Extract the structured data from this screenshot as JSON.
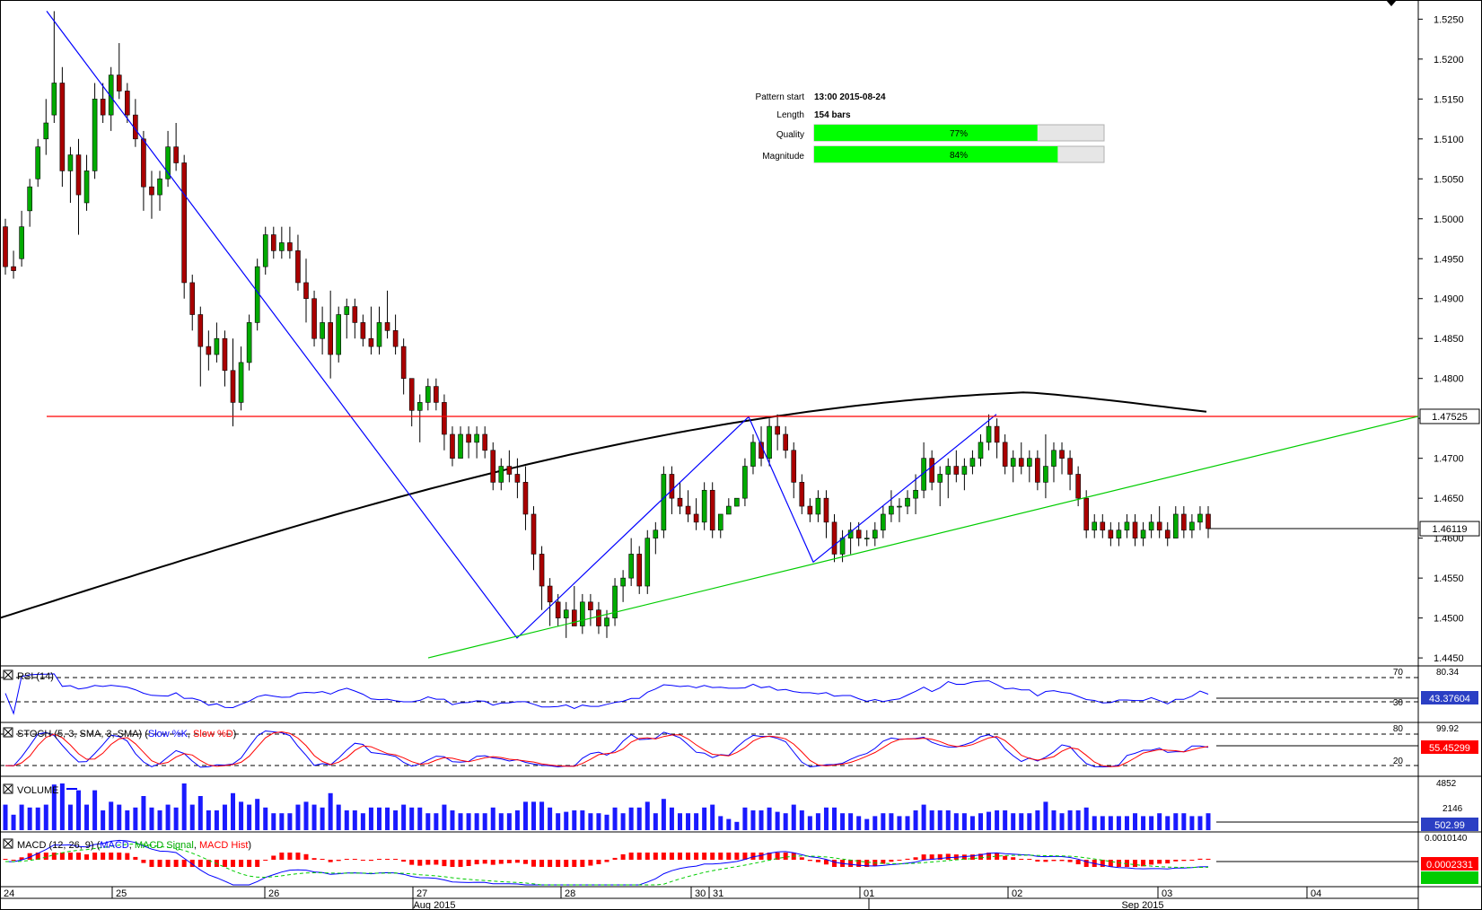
{
  "pattern_info": {
    "pattern_start_label": "Pattern start",
    "pattern_start_value": "13:00 2015-08-24",
    "length_label": "Length",
    "length_value": "154 bars",
    "quality_label": "Quality",
    "quality_value": 0.77,
    "quality_text": "77%",
    "magnitude_label": "Magnitude",
    "magnitude_value": 0.84,
    "magnitude_text": "84%"
  },
  "indicator_labels": {
    "rsi": "RSI (14)",
    "stoch_prefix": "STOCH (5, 3, SMA, 3, SMA) (",
    "stoch_k": "Slow %K",
    "stoch_sep": ", ",
    "stoch_d": "Slow %D",
    "stoch_suffix": ")",
    "volume": "VOLUME",
    "macd_prefix": "MACD (12, 26, 9) (",
    "macd_line": "MACD",
    "macd_sep1": ", ",
    "macd_signal": "MACD Signal",
    "macd_sep2": ", ",
    "macd_hist": "MACD Hist",
    "macd_suffix": ")"
  },
  "price_axis": {
    "ticks": [
      "1.5250",
      "1.5200",
      "1.5150",
      "1.5100",
      "1.5050",
      "1.5000",
      "1.4950",
      "1.4900",
      "1.4850",
      "1.4800",
      "1.4750",
      "1.4700",
      "1.4650",
      "1.4600",
      "1.4550",
      "1.4500",
      "1.4450"
    ],
    "tick_values": [
      1.525,
      1.52,
      1.515,
      1.51,
      1.505,
      1.5,
      1.495,
      1.49,
      1.485,
      1.48,
      1.475,
      1.47,
      1.465,
      1.46,
      1.455,
      1.45,
      1.445
    ],
    "resistance_label": "1.47525",
    "current_label": "1.46119"
  },
  "rsi_axis": {
    "levels": [
      "70",
      "30"
    ],
    "top_value": "80.34",
    "current": "43.37604"
  },
  "stoch_axis": {
    "levels": [
      "80",
      "20"
    ],
    "top_value": "99.92",
    "current": "55.45299"
  },
  "volume_axis": {
    "top_value": "4852",
    "mid_value": "2146",
    "current": "502.99"
  },
  "macd_axis": {
    "top_value": "0.0010140",
    "current": "0.0002331"
  },
  "time_axis": {
    "day_labels": [
      "24",
      "25",
      "26",
      "27",
      "28",
      "30",
      "31",
      "01",
      "02",
      "03",
      "04"
    ],
    "month_labels": [
      "Aug 2015",
      "Sep 2015"
    ]
  },
  "colors": {
    "bull": "#00aa00",
    "bear": "#aa0000",
    "pattern_line": "#0000ff",
    "support_line": "#00cc00",
    "resistance_line": "#ff0000",
    "ma_line": "#000000",
    "quality_bar": "#00ff00",
    "current_badge": "#2b3fc4",
    "macd_badge": "#ff0000"
  },
  "chart_data": {
    "type": "candlestick",
    "ylim": [
      1.444,
      1.5265
    ],
    "resistance_level": 1.47525,
    "current_price": 1.46119,
    "pattern_pivots": [
      {
        "x": "24",
        "y": 1.526
      },
      {
        "x": "27",
        "y": 1.4475
      },
      {
        "x": "31",
        "y": 1.4752
      },
      {
        "x": "31",
        "y": 1.457
      },
      {
        "x": "02",
        "y": 1.4755
      }
    ],
    "support_line": [
      {
        "x": "27",
        "y": 1.445
      },
      {
        "x": "04",
        "y": 1.47525
      }
    ],
    "ohlc": [
      [
        1.499,
        1.5,
        1.493,
        1.494
      ],
      [
        1.494,
        1.496,
        1.4925,
        1.4935
      ],
      [
        1.495,
        1.501,
        1.494,
        1.499
      ],
      [
        1.501,
        1.505,
        1.499,
        1.504
      ],
      [
        1.505,
        1.51,
        1.504,
        1.509
      ],
      [
        1.51,
        1.515,
        1.508,
        1.512
      ],
      [
        1.513,
        1.526,
        1.512,
        1.517
      ],
      [
        1.517,
        1.519,
        1.504,
        1.506
      ],
      [
        1.506,
        1.509,
        1.502,
        1.508
      ],
      [
        1.508,
        1.51,
        1.498,
        1.503
      ],
      [
        1.502,
        1.508,
        1.501,
        1.506
      ],
      [
        1.506,
        1.517,
        1.505,
        1.515
      ],
      [
        1.515,
        1.517,
        1.512,
        1.513
      ],
      [
        1.513,
        1.519,
        1.511,
        1.518
      ],
      [
        1.518,
        1.522,
        1.515,
        1.516
      ],
      [
        1.516,
        1.517,
        1.512,
        1.513
      ],
      [
        1.513,
        1.515,
        1.509,
        1.51
      ],
      [
        1.51,
        1.511,
        1.501,
        1.504
      ],
      [
        1.504,
        1.506,
        1.5,
        1.503
      ],
      [
        1.503,
        1.506,
        1.501,
        1.505
      ],
      [
        1.505,
        1.511,
        1.504,
        1.509
      ],
      [
        1.509,
        1.512,
        1.506,
        1.507
      ],
      [
        1.507,
        1.508,
        1.49,
        1.492
      ],
      [
        1.492,
        1.493,
        1.486,
        1.488
      ],
      [
        1.488,
        1.489,
        1.479,
        1.484
      ],
      [
        1.484,
        1.486,
        1.481,
        1.483
      ],
      [
        1.483,
        1.487,
        1.482,
        1.485
      ],
      [
        1.485,
        1.486,
        1.479,
        1.481
      ],
      [
        1.481,
        1.485,
        1.474,
        1.477
      ],
      [
        1.477,
        1.484,
        1.476,
        1.482
      ],
      [
        1.482,
        1.488,
        1.481,
        1.487
      ],
      [
        1.487,
        1.495,
        1.486,
        1.494
      ],
      [
        1.494,
        1.499,
        1.493,
        1.498
      ],
      [
        1.498,
        1.499,
        1.495,
        1.496
      ],
      [
        1.496,
        1.499,
        1.495,
        1.497
      ],
      [
        1.497,
        1.499,
        1.495,
        1.496
      ],
      [
        1.496,
        1.498,
        1.491,
        1.492
      ],
      [
        1.492,
        1.495,
        1.487,
        1.49
      ],
      [
        1.49,
        1.491,
        1.484,
        1.485
      ],
      [
        1.485,
        1.489,
        1.483,
        1.487
      ],
      [
        1.487,
        1.491,
        1.48,
        1.483
      ],
      [
        1.483,
        1.489,
        1.482,
        1.488
      ],
      [
        1.488,
        1.49,
        1.485,
        1.489
      ],
      [
        1.489,
        1.49,
        1.485,
        1.487
      ],
      [
        1.487,
        1.488,
        1.484,
        1.485
      ],
      [
        1.485,
        1.489,
        1.483,
        1.484
      ],
      [
        1.484,
        1.489,
        1.483,
        1.487
      ],
      [
        1.487,
        1.491,
        1.485,
        1.486
      ],
      [
        1.486,
        1.488,
        1.483,
        1.484
      ],
      [
        1.484,
        1.485,
        1.478,
        1.48
      ],
      [
        1.48,
        1.48,
        1.474,
        1.476
      ],
      [
        1.476,
        1.478,
        1.472,
        1.477
      ],
      [
        1.477,
        1.48,
        1.476,
        1.479
      ],
      [
        1.479,
        1.48,
        1.476,
        1.477
      ],
      [
        1.477,
        1.478,
        1.471,
        1.473
      ],
      [
        1.473,
        1.474,
        1.469,
        1.47
      ],
      [
        1.47,
        1.474,
        1.47,
        1.473
      ],
      [
        1.473,
        1.474,
        1.47,
        1.472
      ],
      [
        1.472,
        1.474,
        1.47,
        1.473
      ],
      [
        1.473,
        1.474,
        1.47,
        1.471
      ],
      [
        1.471,
        1.472,
        1.466,
        1.467
      ],
      [
        1.467,
        1.47,
        1.466,
        1.469
      ],
      [
        1.469,
        1.471,
        1.467,
        1.468
      ],
      [
        1.468,
        1.47,
        1.465,
        1.467
      ],
      [
        1.467,
        1.469,
        1.461,
        1.463
      ],
      [
        1.463,
        1.464,
        1.456,
        1.458
      ],
      [
        1.458,
        1.459,
        1.451,
        1.454
      ],
      [
        1.454,
        1.455,
        1.449,
        1.452
      ],
      [
        1.452,
        1.453,
        1.449,
        1.45
      ],
      [
        1.45,
        1.452,
        1.4475,
        1.451
      ],
      [
        1.451,
        1.454,
        1.449,
        1.449
      ],
      [
        1.449,
        1.453,
        1.448,
        1.452
      ],
      [
        1.452,
        1.453,
        1.449,
        1.451
      ],
      [
        1.451,
        1.452,
        1.448,
        1.449
      ],
      [
        1.449,
        1.451,
        1.4475,
        1.45
      ],
      [
        1.45,
        1.455,
        1.449,
        1.454
      ],
      [
        1.454,
        1.456,
        1.452,
        1.455
      ],
      [
        1.455,
        1.46,
        1.454,
        1.458
      ],
      [
        1.458,
        1.459,
        1.453,
        1.454
      ],
      [
        1.454,
        1.461,
        1.453,
        1.46
      ],
      [
        1.46,
        1.462,
        1.458,
        1.461
      ],
      [
        1.461,
        1.469,
        1.46,
        1.468
      ],
      [
        1.468,
        1.469,
        1.463,
        1.465
      ],
      [
        1.465,
        1.467,
        1.463,
        1.464
      ],
      [
        1.464,
        1.466,
        1.462,
        1.463
      ],
      [
        1.463,
        1.465,
        1.461,
        1.462
      ],
      [
        1.462,
        1.467,
        1.461,
        1.466
      ],
      [
        1.466,
        1.467,
        1.46,
        1.461
      ],
      [
        1.461,
        1.463,
        1.46,
        1.463
      ],
      [
        1.463,
        1.465,
        1.463,
        1.464
      ],
      [
        1.464,
        1.465,
        1.464,
        1.465
      ],
      [
        1.465,
        1.47,
        1.464,
        1.469
      ],
      [
        1.469,
        1.473,
        1.468,
        1.472
      ],
      [
        1.472,
        1.474,
        1.469,
        1.47
      ],
      [
        1.47,
        1.475,
        1.469,
        1.474
      ],
      [
        1.474,
        1.4755,
        1.471,
        1.473
      ],
      [
        1.473,
        1.474,
        1.47,
        1.471
      ],
      [
        1.471,
        1.472,
        1.465,
        1.467
      ],
      [
        1.467,
        1.468,
        1.463,
        1.464
      ],
      [
        1.464,
        1.465,
        1.462,
        1.463
      ],
      [
        1.463,
        1.466,
        1.462,
        1.465
      ],
      [
        1.465,
        1.466,
        1.46,
        1.462
      ],
      [
        1.462,
        1.463,
        1.457,
        1.458
      ],
      [
        1.458,
        1.461,
        1.457,
        1.46
      ],
      [
        1.46,
        1.462,
        1.458,
        1.461
      ],
      [
        1.461,
        1.462,
        1.459,
        1.46
      ],
      [
        1.46,
        1.461,
        1.459,
        1.46
      ],
      [
        1.46,
        1.462,
        1.459,
        1.461
      ],
      [
        1.461,
        1.464,
        1.46,
        1.463
      ],
      [
        1.463,
        1.466,
        1.462,
        1.464
      ],
      [
        1.464,
        1.465,
        1.462,
        1.464
      ],
      [
        1.464,
        1.466,
        1.463,
        1.465
      ],
      [
        1.465,
        1.468,
        1.463,
        1.466
      ],
      [
        1.466,
        1.472,
        1.465,
        1.47
      ],
      [
        1.47,
        1.471,
        1.466,
        1.467
      ],
      [
        1.467,
        1.469,
        1.464,
        1.468
      ],
      [
        1.468,
        1.47,
        1.465,
        1.469
      ],
      [
        1.469,
        1.471,
        1.467,
        1.468
      ],
      [
        1.468,
        1.47,
        1.466,
        1.469
      ],
      [
        1.469,
        1.471,
        1.468,
        1.47
      ],
      [
        1.47,
        1.473,
        1.469,
        1.472
      ],
      [
        1.472,
        1.4755,
        1.471,
        1.474
      ],
      [
        1.474,
        1.475,
        1.47,
        1.472
      ],
      [
        1.472,
        1.473,
        1.468,
        1.469
      ],
      [
        1.469,
        1.471,
        1.467,
        1.47
      ],
      [
        1.47,
        1.472,
        1.468,
        1.469
      ],
      [
        1.469,
        1.471,
        1.467,
        1.47
      ],
      [
        1.47,
        1.471,
        1.466,
        1.467
      ],
      [
        1.467,
        1.473,
        1.465,
        1.469
      ],
      [
        1.469,
        1.472,
        1.467,
        1.471
      ],
      [
        1.471,
        1.472,
        1.468,
        1.47
      ],
      [
        1.47,
        1.471,
        1.466,
        1.468
      ],
      [
        1.468,
        1.469,
        1.464,
        1.465
      ],
      [
        1.465,
        1.466,
        1.46,
        1.461
      ],
      [
        1.461,
        1.463,
        1.46,
        1.462
      ],
      [
        1.462,
        1.463,
        1.46,
        1.461
      ],
      [
        1.461,
        1.462,
        1.459,
        1.46
      ],
      [
        1.46,
        1.462,
        1.459,
        1.461
      ],
      [
        1.461,
        1.463,
        1.46,
        1.462
      ],
      [
        1.462,
        1.463,
        1.459,
        1.46
      ],
      [
        1.46,
        1.462,
        1.459,
        1.461
      ],
      [
        1.461,
        1.463,
        1.46,
        1.462
      ],
      [
        1.462,
        1.464,
        1.46,
        1.461
      ],
      [
        1.461,
        1.462,
        1.459,
        1.46
      ],
      [
        1.46,
        1.464,
        1.46,
        1.463
      ],
      [
        1.463,
        1.464,
        1.46,
        1.461
      ],
      [
        1.461,
        1.463,
        1.46,
        1.462
      ],
      [
        1.462,
        1.464,
        1.461,
        1.463
      ],
      [
        1.463,
        1.464,
        1.46,
        1.4612
      ]
    ]
  }
}
